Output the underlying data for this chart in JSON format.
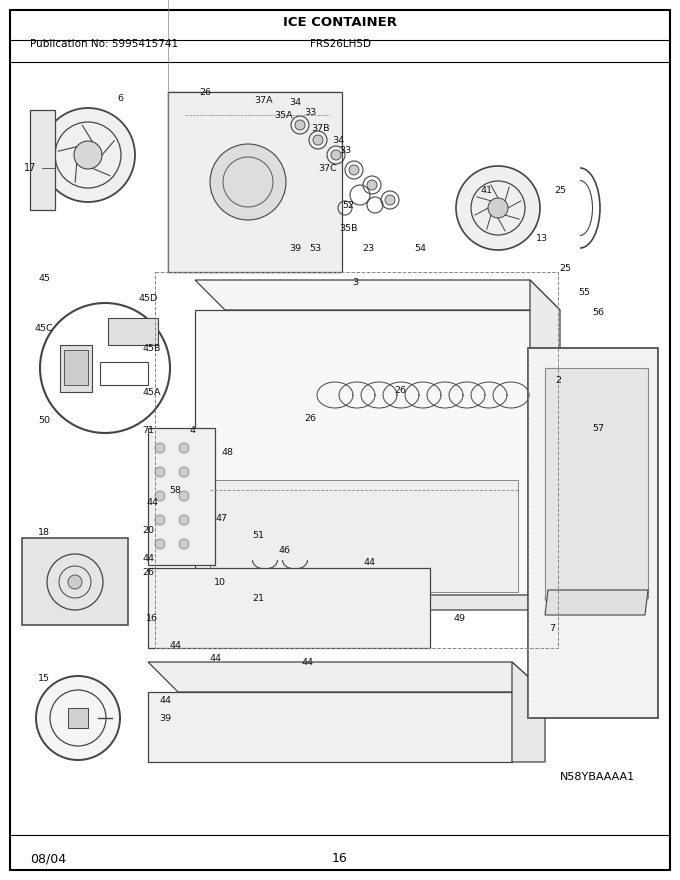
{
  "title": "ICE CONTAINER",
  "pub_no": "Publication No: 5995415741",
  "model": "FRS26LH5D",
  "date": "08/04",
  "page": "16",
  "diagram_id": "N58YBAAAA1",
  "bg_color": "#ffffff",
  "border_color": "#000000",
  "text_color": "#000000",
  "fig_width": 6.8,
  "fig_height": 8.8,
  "dpi": 100,
  "labels": [
    [
      120,
      98,
      "6"
    ],
    [
      205,
      92,
      "26"
    ],
    [
      264,
      100,
      "37A"
    ],
    [
      295,
      102,
      "34"
    ],
    [
      310,
      112,
      "33"
    ],
    [
      320,
      128,
      "37B"
    ],
    [
      338,
      140,
      "34"
    ],
    [
      345,
      150,
      "33"
    ],
    [
      328,
      168,
      "37C"
    ],
    [
      348,
      205,
      "52"
    ],
    [
      348,
      228,
      "35B"
    ],
    [
      315,
      248,
      "53"
    ],
    [
      284,
      115,
      "35A"
    ],
    [
      420,
      248,
      "54"
    ],
    [
      487,
      190,
      "41"
    ],
    [
      560,
      190,
      "25"
    ],
    [
      542,
      238,
      "13"
    ],
    [
      565,
      268,
      "25"
    ],
    [
      584,
      292,
      "55"
    ],
    [
      598,
      312,
      "56"
    ],
    [
      44,
      278,
      "45"
    ],
    [
      148,
      298,
      "45D"
    ],
    [
      44,
      328,
      "45C"
    ],
    [
      152,
      348,
      "45B"
    ],
    [
      152,
      392,
      "45A"
    ],
    [
      44,
      420,
      "50"
    ],
    [
      148,
      430,
      "71"
    ],
    [
      192,
      430,
      "4"
    ],
    [
      355,
      282,
      "3"
    ],
    [
      558,
      380,
      "2"
    ],
    [
      400,
      390,
      "26"
    ],
    [
      310,
      418,
      "26"
    ],
    [
      598,
      428,
      "57"
    ],
    [
      228,
      452,
      "48"
    ],
    [
      175,
      490,
      "58"
    ],
    [
      152,
      502,
      "44"
    ],
    [
      44,
      532,
      "18"
    ],
    [
      148,
      530,
      "20"
    ],
    [
      222,
      518,
      "47"
    ],
    [
      258,
      535,
      "51"
    ],
    [
      285,
      550,
      "46"
    ],
    [
      370,
      562,
      "44"
    ],
    [
      148,
      558,
      "44"
    ],
    [
      148,
      572,
      "26"
    ],
    [
      220,
      582,
      "10"
    ],
    [
      258,
      598,
      "21"
    ],
    [
      460,
      618,
      "49"
    ],
    [
      552,
      628,
      "7"
    ],
    [
      152,
      618,
      "16"
    ],
    [
      175,
      645,
      "44"
    ],
    [
      215,
      658,
      "44"
    ],
    [
      308,
      662,
      "44"
    ],
    [
      44,
      678,
      "15"
    ],
    [
      165,
      700,
      "44"
    ],
    [
      165,
      718,
      "39"
    ],
    [
      295,
      248,
      "39"
    ],
    [
      368,
      248,
      "23"
    ]
  ]
}
